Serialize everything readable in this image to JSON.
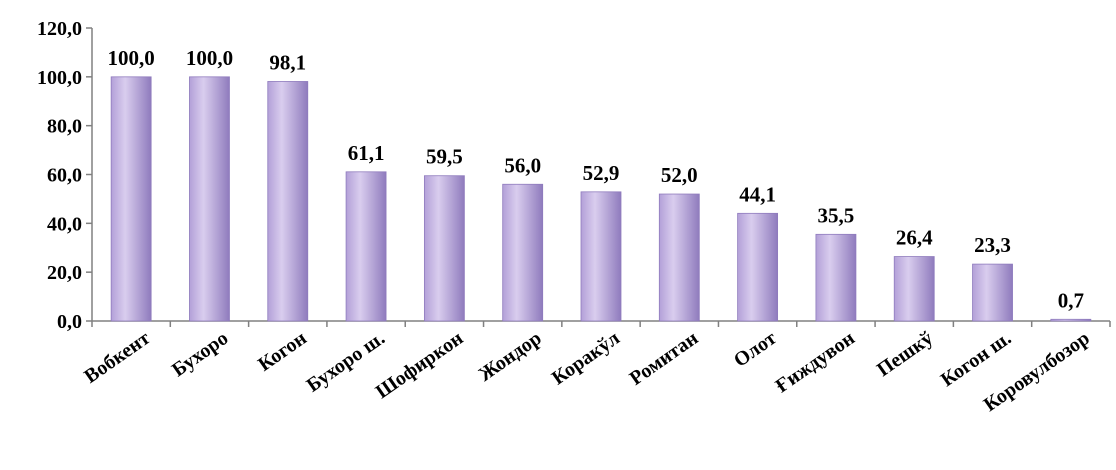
{
  "chart_data": {
    "type": "bar",
    "categories": [
      "Вобкент",
      "Бухоро",
      "Когон",
      "Бухоро ш.",
      "Шофиркон",
      "Жондор",
      "Коракўл",
      "Ромитан",
      "Олот",
      "Ғиждувон",
      "Пешкў",
      "Когон ш.",
      "Коровулбозор"
    ],
    "values": [
      100.0,
      100.0,
      98.1,
      61.1,
      59.5,
      56.0,
      52.9,
      52.0,
      44.1,
      35.5,
      26.4,
      23.3,
      0.7
    ],
    "data_labels": [
      "100,0",
      "100,0",
      "98,1",
      "61,1",
      "59,5",
      "56,0",
      "52,9",
      "52,0",
      "44,1",
      "35,5",
      "26,4",
      "23,3",
      "0,7"
    ],
    "y_ticks": [
      "0,0",
      "20,0",
      "40,0",
      "60,0",
      "80,0",
      "100,0",
      "120,0"
    ],
    "ylim": [
      0,
      120
    ],
    "grid": false,
    "legend": "none",
    "title": "",
    "xlabel": "",
    "ylabel": "",
    "colors": {
      "bar_light": "#d9cdee",
      "bar_mid": "#b3a0d8",
      "bar_dark": "#8f7bbd",
      "axis": "#808080"
    }
  }
}
